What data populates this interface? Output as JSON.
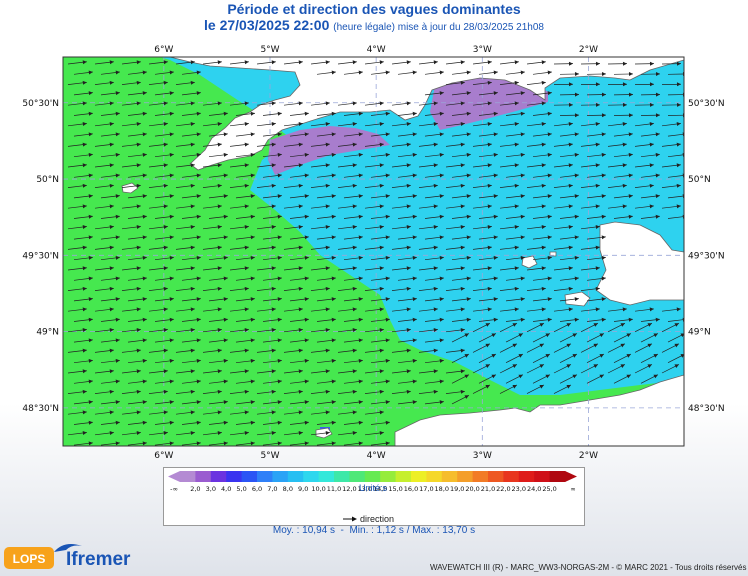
{
  "header": {
    "title": "Période et direction des vagues dominantes",
    "date": "le 27/03/2025 22:00",
    "subtitle": "(heure légale) mise à jour du 28/03/2025 21h08"
  },
  "map": {
    "lon_labels": [
      "6°W",
      "5°W",
      "4°W",
      "3°W",
      "2°W"
    ],
    "lat_labels": [
      "50°30'N",
      "50°N",
      "49°30'N",
      "49°N",
      "48°30'N"
    ],
    "lon_range": [
      -6.95,
      -1.1
    ],
    "lat_range": [
      48.25,
      50.8
    ]
  },
  "legend": {
    "ticks": [
      "-∞",
      "2,0",
      "3,0",
      "4,0",
      "5,0",
      "6,0",
      "7,0",
      "8,0",
      "9,0",
      "10,0",
      "11,0",
      "12,0",
      "13,0",
      "14,0",
      "15,0",
      "16,0",
      "17,0",
      "18,0",
      "19,0",
      "20,0",
      "21,0",
      "22,0",
      "23,0",
      "24,0",
      "25,0",
      "∞"
    ],
    "colors": [
      "#b48ad3",
      "#9a5cd0",
      "#6b33e0",
      "#3a34f0",
      "#2b55f5",
      "#2f80f8",
      "#2ba3f6",
      "#27bff2",
      "#2ed7ee",
      "#34e8da",
      "#3ee8a8",
      "#4ee878",
      "#66ea52",
      "#96ec3c",
      "#c6ef2e",
      "#edef26",
      "#f5d82a",
      "#f6bd2c",
      "#f49e2a",
      "#f27b26",
      "#ee5822",
      "#e8361e",
      "#df1c1a",
      "#cf1018",
      "#b00810"
    ],
    "units": "Unité:s",
    "direction_label": "direction"
  },
  "stats": {
    "moy": "Moy. : 10,94 s",
    "sep": "-",
    "minmax": "Min. : 1,12 s / Max. : 13,70 s"
  },
  "footer": "WAVEWATCH III (R) - MARC_WW3-NORGAS-2M - © MARC 2021 - Tous droits réservés",
  "logos": {
    "lops": "LOPS",
    "ifremer": "Ifremer"
  },
  "palette": {
    "green": "#46e84f",
    "cyan": "#2ed2ef",
    "purple": "#a87dcd",
    "land": "#ffffff",
    "frame_bg": "#f8f8f8"
  }
}
